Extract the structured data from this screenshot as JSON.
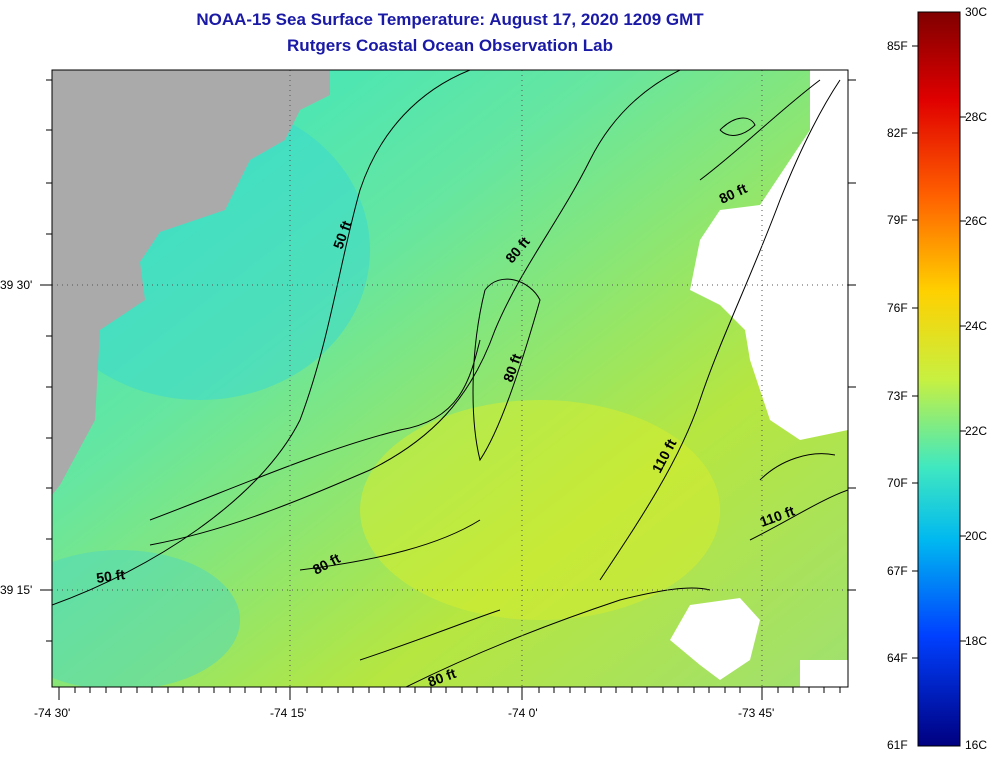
{
  "title": {
    "line1": "NOAA-15 Sea Surface Temperature:  August 17, 2020 1209 GMT",
    "line2": "Rutgers Coastal Ocean Observation Lab"
  },
  "axes": {
    "longitude_labels": [
      "-74 30'",
      "-74 15'",
      "-74 0'",
      "-73 45'"
    ],
    "latitude_labels": [
      "39 30'",
      "39 15'"
    ]
  },
  "contours": {
    "labels": [
      "50 ft",
      "50 ft",
      "80 ft",
      "80 ft",
      "80 ft",
      "80 ft",
      "80 ft",
      "110 ft",
      "110 ft"
    ]
  },
  "colorbar": {
    "fahrenheit_labels": [
      "85F",
      "82F",
      "79F",
      "76F",
      "73F",
      "70F",
      "67F",
      "64F",
      "61F"
    ],
    "celsius_labels": [
      "30C",
      "28C",
      "26C",
      "24C",
      "22C",
      "20C",
      "18C",
      "16C"
    ]
  },
  "colors": {
    "land": "#aaaaaa",
    "cloud": "#ffffff",
    "title": "#1a1aa6"
  }
}
